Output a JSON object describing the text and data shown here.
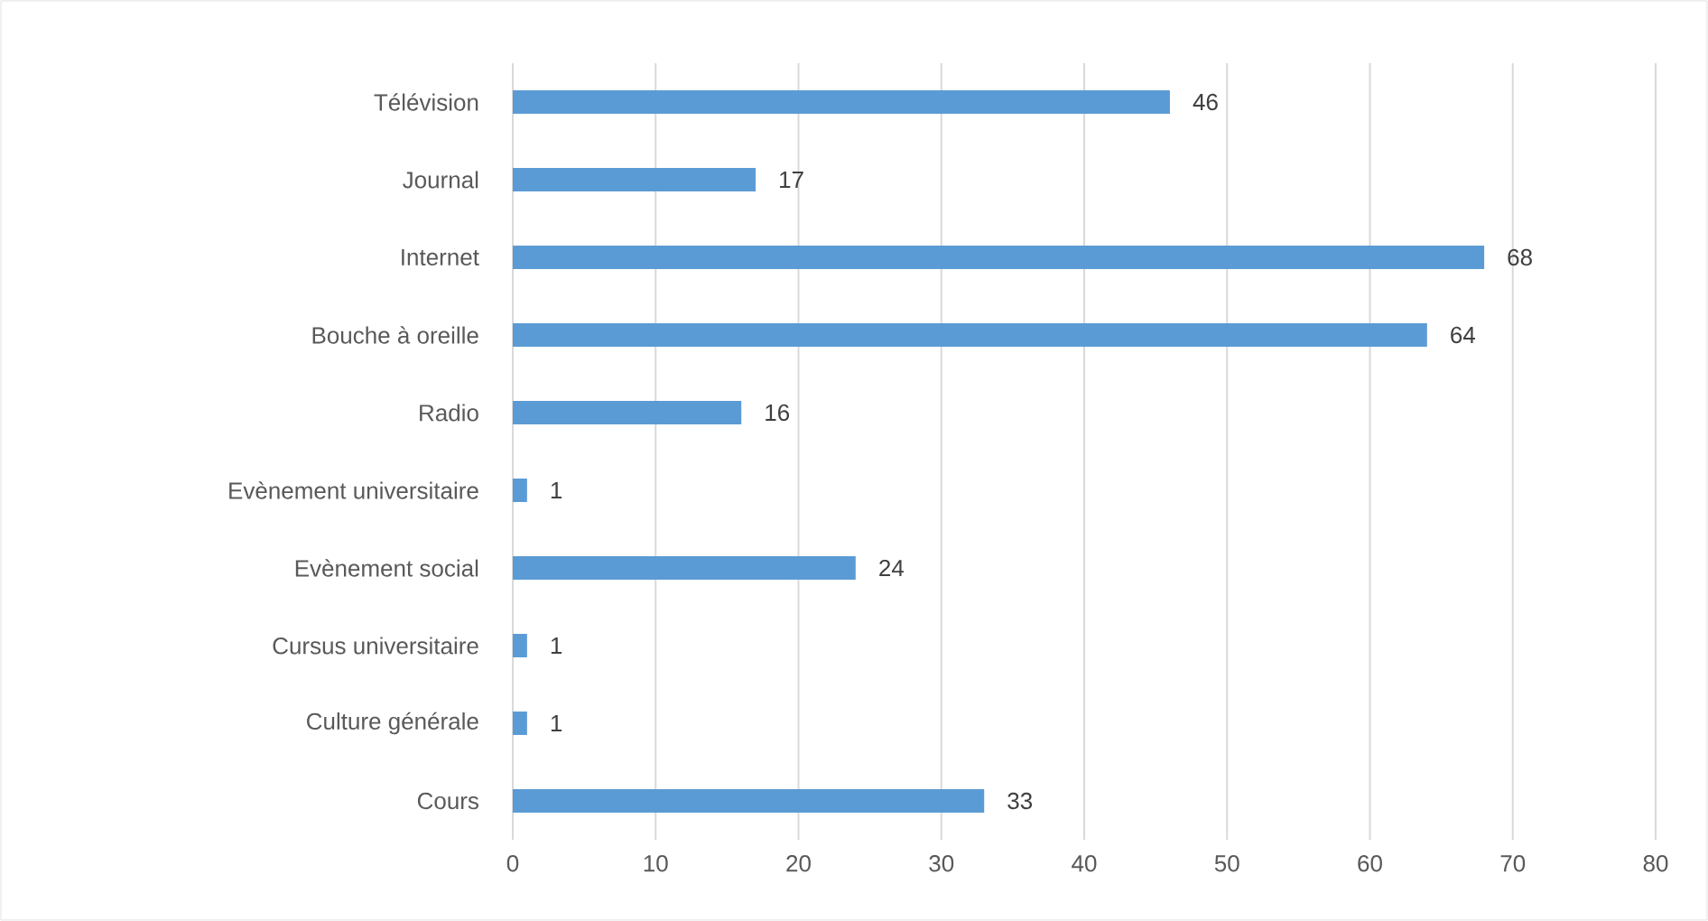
{
  "chart_data": {
    "type": "bar",
    "orientation": "horizontal",
    "categories": [
      "Télévision",
      "Journal",
      "Internet",
      "Bouche à oreille",
      "Radio",
      "Evènement universitaire",
      "Evènement social",
      "Cursus universitaire",
      "Culture générale",
      "Cours"
    ],
    "values": [
      46,
      17,
      68,
      64,
      16,
      1,
      24,
      1,
      1,
      33
    ],
    "color": "#5b9bd5",
    "xlim": [
      0,
      80
    ],
    "xticks": [
      0,
      10,
      20,
      30,
      40,
      50,
      60,
      70,
      80
    ],
    "grid": "x",
    "data_labels": true
  }
}
